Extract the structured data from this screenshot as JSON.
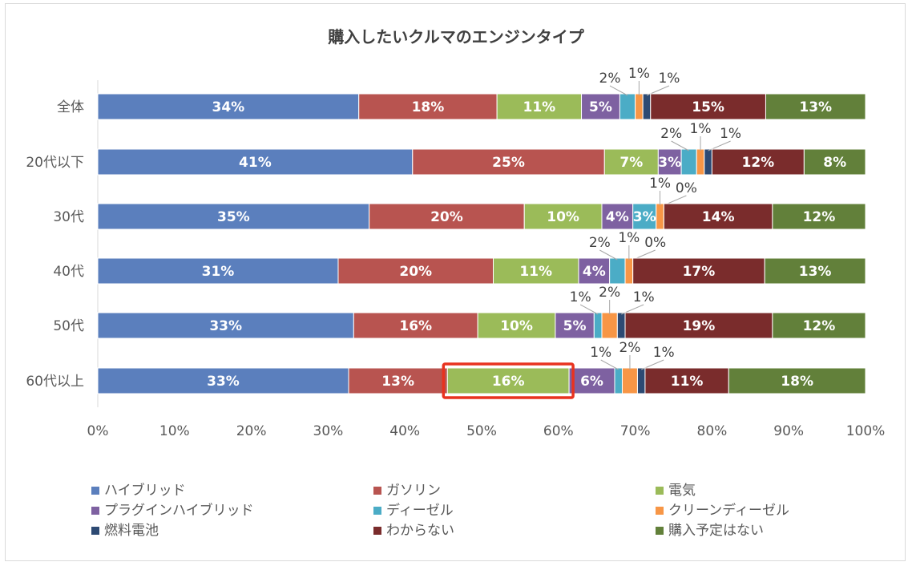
{
  "chart_data": {
    "type": "bar",
    "orientation": "horizontal",
    "stacked": "percent",
    "title": "購入したいクルマのエンジンタイプ",
    "xlabel": "",
    "ylabel": "",
    "xlim": [
      0,
      100
    ],
    "x_ticks": [
      "0%",
      "10%",
      "20%",
      "30%",
      "40%",
      "50%",
      "60%",
      "70%",
      "80%",
      "90%",
      "100%"
    ],
    "categories": [
      "全体",
      "20代以下",
      "30代",
      "40代",
      "50代",
      "60代以上"
    ],
    "series": [
      {
        "name": "ハイブリッド",
        "color": "#5b7fbd",
        "values": [
          34,
          41,
          35,
          31,
          33,
          33
        ],
        "labels": [
          "34%",
          "41%",
          "35%",
          "31%",
          "33%",
          "33%"
        ]
      },
      {
        "name": "ガソリン",
        "color": "#b85450",
        "values": [
          18,
          25,
          20,
          20,
          16,
          13
        ],
        "labels": [
          "18%",
          "25%",
          "20%",
          "20%",
          "16%",
          "13%"
        ]
      },
      {
        "name": "電気",
        "color": "#9bbb59",
        "values": [
          11,
          7,
          10,
          11,
          10,
          16
        ],
        "labels": [
          "11%",
          "7%",
          "10%",
          "11%",
          "10%",
          "16%"
        ]
      },
      {
        "name": "プラグインハイブリッド",
        "color": "#7e61a1",
        "values": [
          5,
          3,
          4,
          4,
          5,
          6
        ],
        "labels": [
          "5%",
          "3%",
          "4%",
          "4%",
          "5%",
          "6%"
        ]
      },
      {
        "name": "ディーゼル",
        "color": "#4bacc6",
        "values": [
          2,
          2,
          3,
          2,
          1,
          1
        ],
        "labels": [
          "2%",
          "2%",
          "3%",
          "2%",
          "1%",
          "1%"
        ]
      },
      {
        "name": "クリーンディーゼル",
        "color": "#f79646",
        "values": [
          1,
          1,
          1,
          1,
          2,
          2
        ],
        "labels": [
          "1%",
          "1%",
          "1%",
          "1%",
          "2%",
          "2%"
        ]
      },
      {
        "name": "燃料電池",
        "color": "#2d4a73",
        "values": [
          1,
          1,
          0,
          0,
          1,
          1
        ],
        "labels": [
          "1%",
          "1%",
          "0%",
          "0%",
          "1%",
          "1%"
        ]
      },
      {
        "name": "わからない",
        "color": "#7a2c2c",
        "values": [
          15,
          12,
          14,
          17,
          19,
          11
        ],
        "labels": [
          "15%",
          "12%",
          "14%",
          "17%",
          "19%",
          "11%"
        ]
      },
      {
        "name": "購入予定はない",
        "color": "#62803a",
        "values": [
          13,
          8,
          12,
          13,
          12,
          18
        ],
        "labels": [
          "13%",
          "8%",
          "12%",
          "13%",
          "12%",
          "18%"
        ]
      }
    ],
    "highlight": {
      "category": "60代以上",
      "series": "電気",
      "color": "#e8321f"
    },
    "legend": "bottom"
  }
}
